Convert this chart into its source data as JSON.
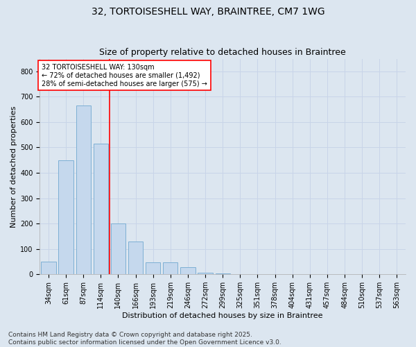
{
  "title_line1": "32, TORTOISESHELL WAY, BRAINTREE, CM7 1WG",
  "title_line2": "Size of property relative to detached houses in Braintree",
  "xlabel": "Distribution of detached houses by size in Braintree",
  "ylabel": "Number of detached properties",
  "footnote": "Contains HM Land Registry data © Crown copyright and database right 2025.\nContains public sector information licensed under the Open Government Licence v3.0.",
  "bar_labels": [
    "34sqm",
    "61sqm",
    "87sqm",
    "114sqm",
    "140sqm",
    "166sqm",
    "193sqm",
    "219sqm",
    "246sqm",
    "272sqm",
    "299sqm",
    "325sqm",
    "351sqm",
    "378sqm",
    "404sqm",
    "431sqm",
    "457sqm",
    "484sqm",
    "510sqm",
    "537sqm",
    "563sqm"
  ],
  "bar_values": [
    50,
    450,
    665,
    515,
    200,
    130,
    48,
    48,
    28,
    5,
    2,
    0,
    0,
    0,
    0,
    0,
    0,
    0,
    0,
    0,
    0
  ],
  "bar_color": "#c5d8ed",
  "bar_edge_color": "#7dafd4",
  "property_line_x": 3.52,
  "annotation_line1": "32 TORTOISESHELL WAY: 130sqm",
  "annotation_line2": "← 72% of detached houses are smaller (1,492)",
  "annotation_line3": "28% of semi-detached houses are larger (575) →",
  "ylim": [
    0,
    850
  ],
  "yticks": [
    0,
    100,
    200,
    300,
    400,
    500,
    600,
    700,
    800
  ],
  "grid_color": "#c8d4e8",
  "bg_color": "#dce6f0",
  "plot_bg_color": "#dce6f0",
  "title1_fontsize": 10,
  "title2_fontsize": 9,
  "axis_label_fontsize": 8,
  "tick_fontsize": 7,
  "annotation_fontsize": 7,
  "footnote_fontsize": 6.5
}
